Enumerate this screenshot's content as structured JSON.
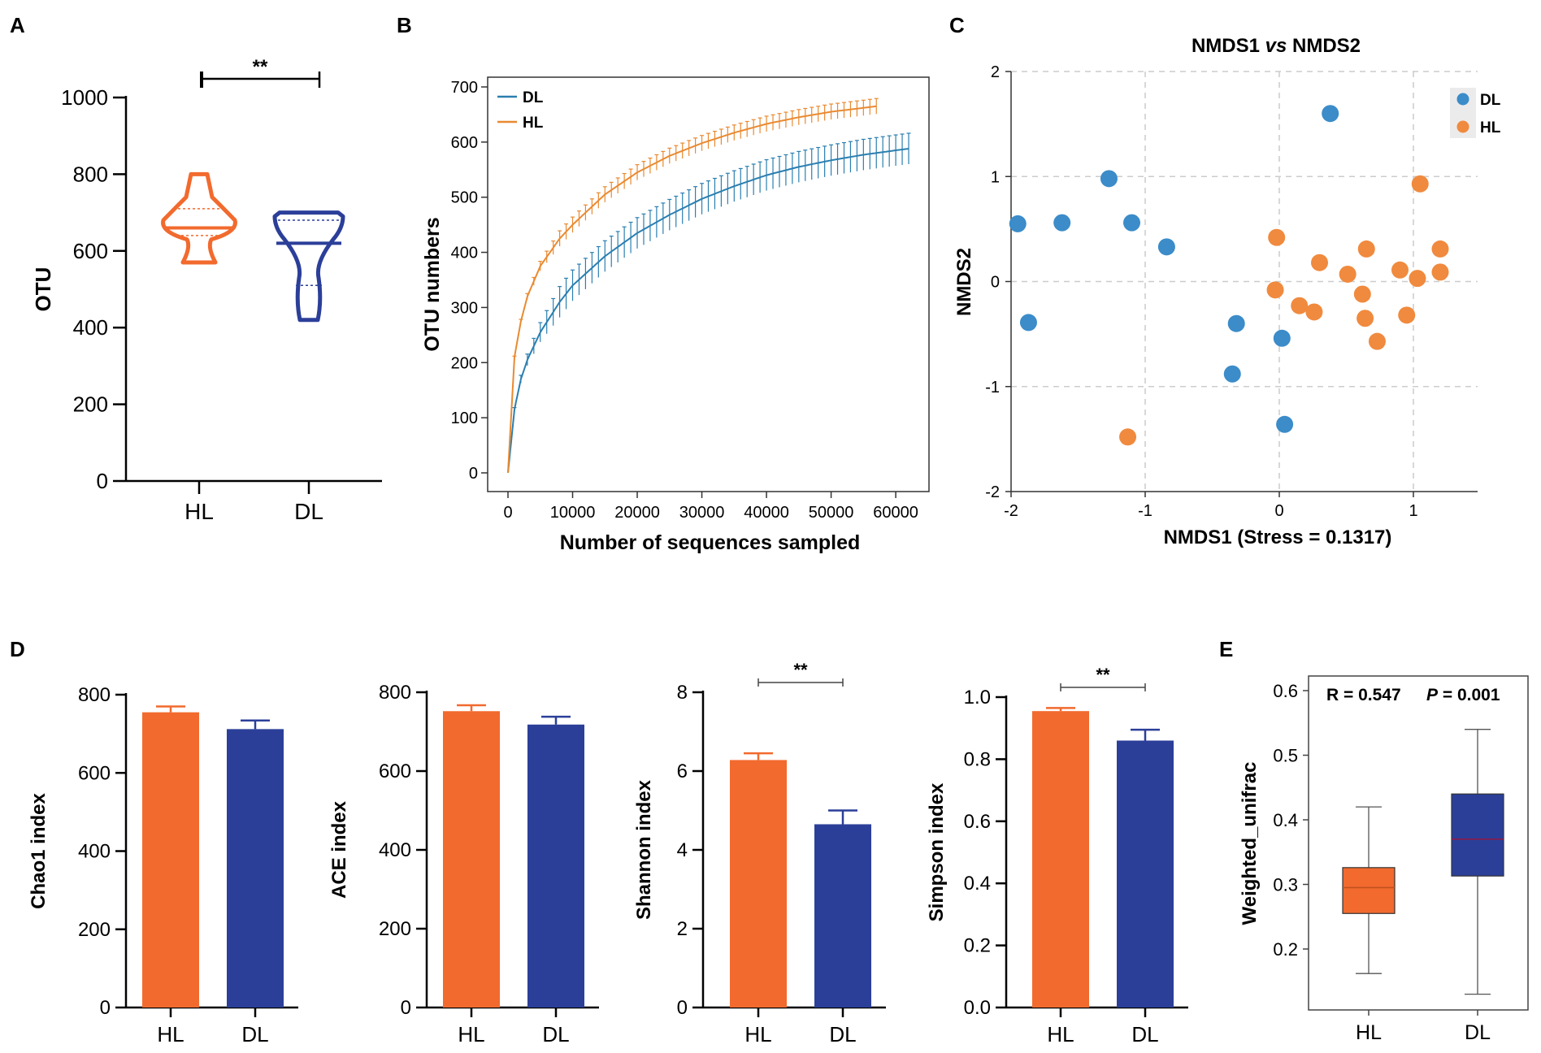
{
  "colors": {
    "HL": "#F26A2E",
    "DL": "#2B3F99",
    "DL_light": "#3A86C4",
    "HL_light": "#F0893A",
    "nmds_DL": "#3B8CC9",
    "nmds_HL": "#F08A3E",
    "rare_DL": "#2B7FB0",
    "rare_HL": "#E98A31",
    "axis": "#000000",
    "grid": "#CCCCCC",
    "sig": "#000000"
  },
  "chart_data": [
    {
      "panel": "A",
      "type": "violin",
      "ylabel": "OTU",
      "ylim": [
        0,
        1000
      ],
      "yticks": [
        "0",
        "200",
        "400",
        "600",
        "800",
        "1000"
      ],
      "categories": [
        "HL",
        "DL"
      ],
      "significance": "**",
      "groups": [
        {
          "name": "HL",
          "min": 570,
          "q1": 640,
          "median": 660,
          "q3": 710,
          "max": 800
        },
        {
          "name": "DL",
          "min": 420,
          "q1": 510,
          "median": 620,
          "q3": 680,
          "max": 700
        }
      ]
    },
    {
      "panel": "B",
      "type": "line",
      "xlabel": "Number of sequences sampled",
      "ylabel": "OTU numbers",
      "xlim": [
        0,
        62000
      ],
      "ylim": [
        0,
        700
      ],
      "xticks": [
        "0",
        "10000",
        "20000",
        "30000",
        "40000",
        "50000",
        "60000"
      ],
      "yticks": [
        "0",
        "100",
        "200",
        "300",
        "400",
        "500",
        "600",
        "700"
      ],
      "series": [
        {
          "name": "DL",
          "x": [
            0,
            1000,
            2000,
            3000,
            5000,
            8000,
            10000,
            15000,
            20000,
            25000,
            30000,
            35000,
            40000,
            45000,
            50000,
            55000,
            60000,
            62000
          ],
          "y": [
            0,
            115,
            170,
            205,
            255,
            310,
            340,
            393,
            435,
            468,
            497,
            520,
            540,
            555,
            567,
            577,
            585,
            588
          ],
          "err": 28
        },
        {
          "name": "HL",
          "x": [
            0,
            1000,
            2000,
            3000,
            5000,
            8000,
            10000,
            15000,
            20000,
            25000,
            30000,
            35000,
            40000,
            45000,
            50000,
            55000,
            57000
          ],
          "y": [
            0,
            210,
            275,
            320,
            375,
            425,
            450,
            505,
            545,
            575,
            598,
            617,
            633,
            645,
            655,
            662,
            665
          ],
          "err": 14
        }
      ]
    },
    {
      "panel": "C",
      "type": "scatter",
      "title": "NMDS1 ",
      "title_italic": "vs",
      "title_end": " NMDS2",
      "xlabel": "NMDS1 (Stress = 0.1317)",
      "ylabel": "NMDS2",
      "xlim": [
        -2,
        1.5
      ],
      "ylim": [
        -2,
        2
      ],
      "xticks": [
        "-2",
        "-1",
        "0",
        "1"
      ],
      "yticks": [
        "-2",
        "-1",
        "0",
        "1",
        "2"
      ],
      "series": [
        {
          "name": "DL",
          "points": [
            [
              0.38,
              1.6
            ],
            [
              -1.27,
              0.98
            ],
            [
              -1.95,
              0.55
            ],
            [
              -1.62,
              0.56
            ],
            [
              -1.1,
              0.56
            ],
            [
              -0.84,
              0.33
            ],
            [
              -1.87,
              -0.39
            ],
            [
              -0.32,
              -0.4
            ],
            [
              0.02,
              -0.54
            ],
            [
              -0.35,
              -0.88
            ],
            [
              0.04,
              -1.36
            ]
          ]
        },
        {
          "name": "HL",
          "points": [
            [
              1.05,
              0.93
            ],
            [
              -0.02,
              0.42
            ],
            [
              0.65,
              0.31
            ],
            [
              1.2,
              0.31
            ],
            [
              0.3,
              0.18
            ],
            [
              0.51,
              0.07
            ],
            [
              0.9,
              0.11
            ],
            [
              1.2,
              0.09
            ],
            [
              1.03,
              0.03
            ],
            [
              -0.03,
              -0.08
            ],
            [
              0.62,
              -0.12
            ],
            [
              0.15,
              -0.23
            ],
            [
              0.26,
              -0.29
            ],
            [
              0.64,
              -0.35
            ],
            [
              0.95,
              -0.32
            ],
            [
              0.73,
              -0.57
            ],
            [
              -1.13,
              -1.48
            ]
          ]
        }
      ]
    },
    {
      "panel": "D",
      "type": "bar",
      "subplots": [
        {
          "ylabel": "Chao1 index",
          "ylim": [
            0,
            800
          ],
          "yticks": [
            "0",
            "200",
            "400",
            "600",
            "800"
          ],
          "categories": [
            "HL",
            "DL"
          ],
          "values": [
            755,
            712
          ],
          "errors": [
            15,
            22
          ],
          "significance": ""
        },
        {
          "ylabel": "ACE index",
          "ylim": [
            0,
            800
          ],
          "yticks": [
            "0",
            "200",
            "400",
            "600",
            "800"
          ],
          "categories": [
            "HL",
            "DL"
          ],
          "values": [
            752,
            718
          ],
          "errors": [
            15,
            20
          ],
          "significance": ""
        },
        {
          "ylabel": "Shannon index",
          "ylim": [
            0,
            8
          ],
          "yticks": [
            "0",
            "2",
            "4",
            "6",
            "8"
          ],
          "categories": [
            "HL",
            "DL"
          ],
          "values": [
            6.28,
            4.65
          ],
          "errors": [
            0.17,
            0.35
          ],
          "significance": "**"
        },
        {
          "ylabel": "Simpson index",
          "ylim": [
            0,
            1.0
          ],
          "yticks": [
            "0.0",
            "0.2",
            "0.4",
            "0.6",
            "0.8",
            "1.0"
          ],
          "categories": [
            "HL",
            "DL"
          ],
          "values": [
            0.955,
            0.86
          ],
          "errors": [
            0.01,
            0.035
          ],
          "significance": "**"
        }
      ]
    },
    {
      "panel": "E",
      "type": "box",
      "ylabel": "Weighted_unifrac",
      "ylim": [
        0.115,
        0.625
      ],
      "yticks": [
        "0.2",
        "0.3",
        "0.4",
        "0.5",
        "0.6"
      ],
      "categories": [
        "HL",
        "DL"
      ],
      "annotation_R": "R = 0.547",
      "annotation_P_label": "P",
      "annotation_P_value": " = 0.001",
      "groups": [
        {
          "name": "HL",
          "min": 0.162,
          "q1": 0.255,
          "median": 0.295,
          "q3": 0.326,
          "max": 0.42
        },
        {
          "name": "DL",
          "min": 0.13,
          "q1": 0.313,
          "median": 0.37,
          "q3": 0.44,
          "max": 0.54
        }
      ]
    }
  ],
  "panel_labels": [
    "A",
    "B",
    "C",
    "D",
    "E"
  ]
}
